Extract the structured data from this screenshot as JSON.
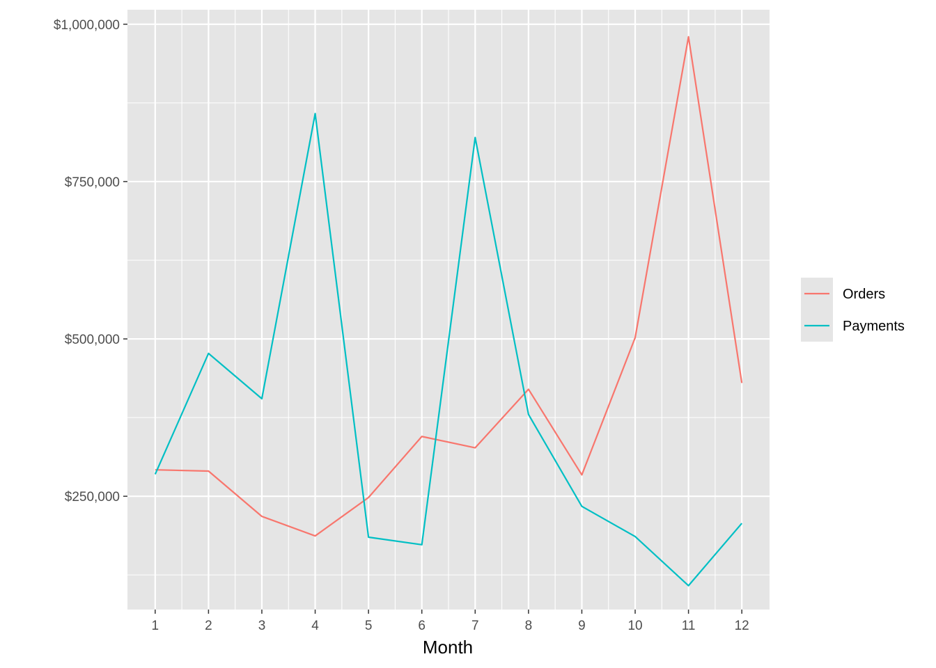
{
  "chart_data": {
    "type": "line",
    "title": "",
    "xlabel": "Month",
    "ylabel": "",
    "x": [
      1,
      2,
      3,
      4,
      5,
      6,
      7,
      8,
      9,
      10,
      11,
      12
    ],
    "x_tick_labels": [
      "1",
      "2",
      "3",
      "4",
      "5",
      "6",
      "7",
      "8",
      "9",
      "10",
      "11",
      "12"
    ],
    "y_ticks": [
      250000,
      500000,
      750000,
      1000000
    ],
    "y_tick_labels": [
      "$250,000",
      "$500,000",
      "$750,000",
      "$1,000,000"
    ],
    "xlim": [
      0.48,
      12.52
    ],
    "ylim": [
      70000,
      1023000
    ],
    "grid": true,
    "legend_position": "right",
    "series": [
      {
        "name": "Orders",
        "color": "#F8766D",
        "values": [
          292000,
          290000,
          218000,
          187000,
          248000,
          345000,
          327000,
          420000,
          284000,
          502000,
          980000,
          430000
        ]
      },
      {
        "name": "Payments",
        "color": "#00BFC4",
        "values": [
          285000,
          477000,
          405000,
          858000,
          185000,
          173000,
          820000,
          380000,
          234000,
          186000,
          108000,
          207000
        ]
      }
    ]
  },
  "colors": {
    "panel_background": "#E5E5E5",
    "grid_line": "#FFFFFF",
    "tick_text": "#4D4D4D",
    "tick_mark": "#333333"
  }
}
